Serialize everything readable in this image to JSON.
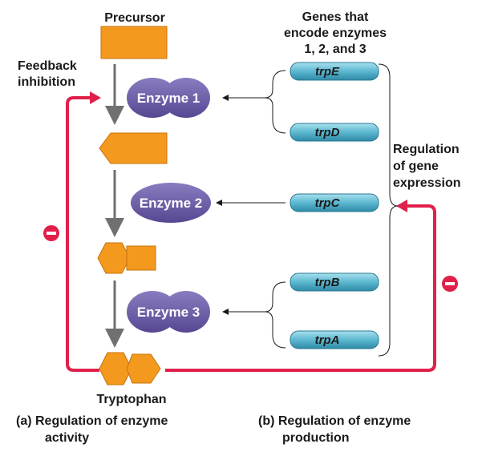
{
  "labels": {
    "precursor": "Precursor",
    "tryptophan": "Tryptophan",
    "feedback_line1": "Feedback",
    "feedback_line2": "inhibition",
    "genes_line1": "Genes that",
    "genes_line2": "encode enzymes",
    "genes_line3": "1, 2, and 3",
    "regulation_line1": "Regulation",
    "regulation_line2": "of gene",
    "regulation_line3": "expression",
    "caption_a_line1": "(a) Regulation of enzyme",
    "caption_a_line2": "activity",
    "caption_b_line1": "(b) Regulation of enzyme",
    "caption_b_line2": "production"
  },
  "enzymes": [
    "Enzyme 1",
    "Enzyme 2",
    "Enzyme 3"
  ],
  "genes": [
    "trpE",
    "trpD",
    "trpC",
    "trpB",
    "trpA"
  ],
  "inhibition_symbol": "−",
  "colors": {
    "substrate": "#f39a1e",
    "enzyme": "#6a5aa0",
    "gene": "#5bb8d0",
    "inhibition": "#e0204a",
    "arrow": "#707070"
  }
}
